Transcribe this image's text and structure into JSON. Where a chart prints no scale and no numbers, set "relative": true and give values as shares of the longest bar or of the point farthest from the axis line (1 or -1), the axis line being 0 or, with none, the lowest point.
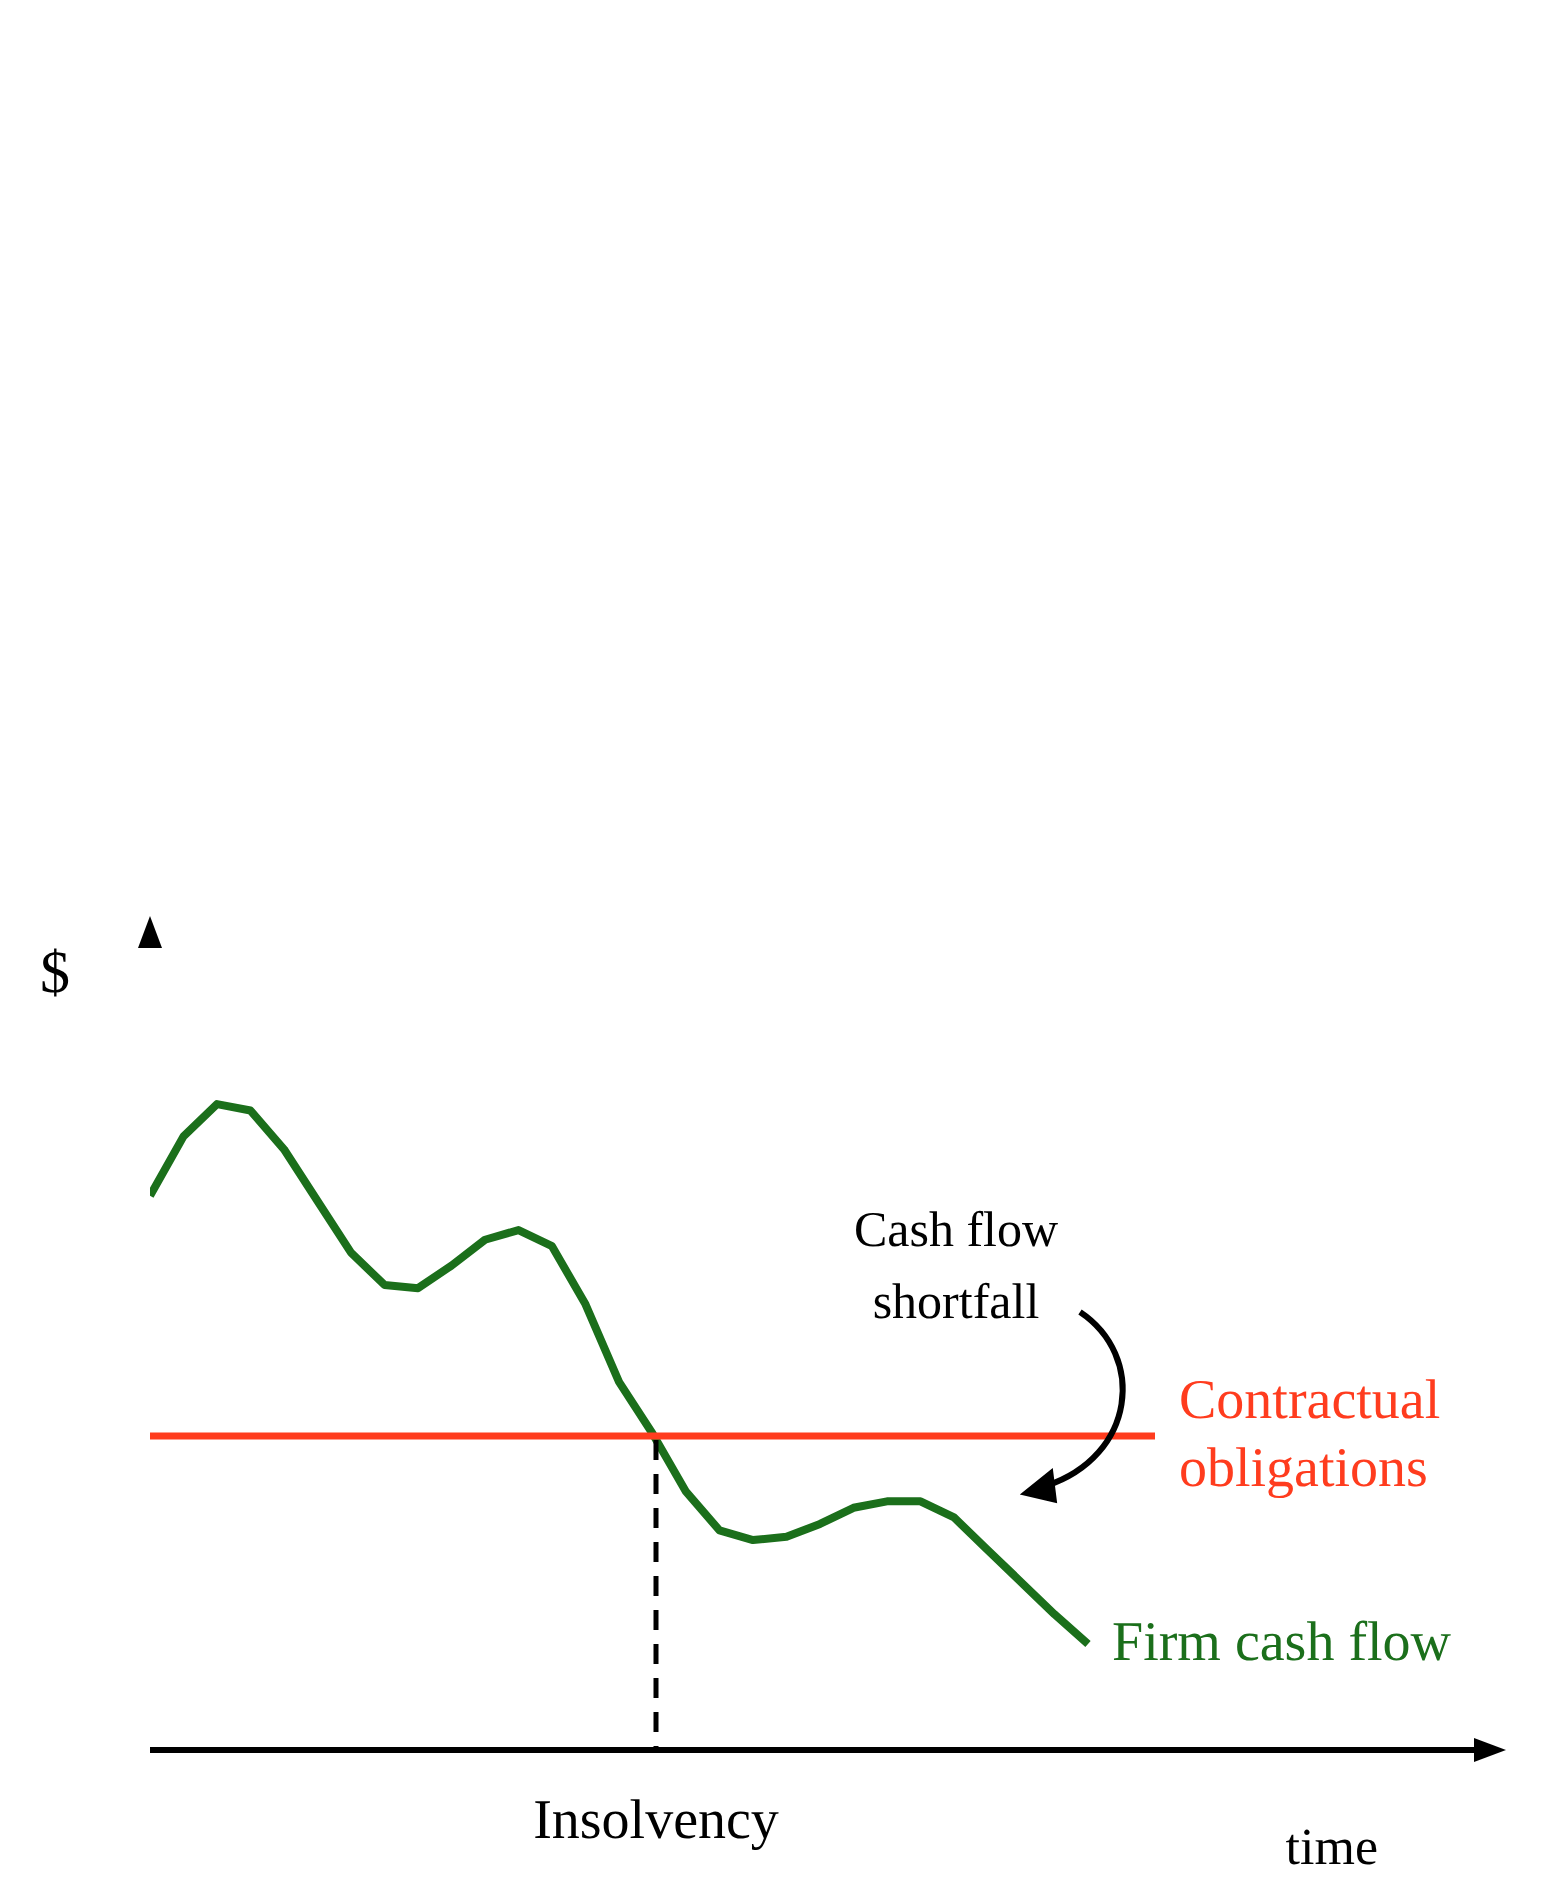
{
  "chart_data": {
    "type": "line",
    "relative": true,
    "xlabel": "time",
    "ylabel": "$",
    "categories": [
      null,
      null,
      null,
      null,
      null,
      null,
      null,
      null,
      null,
      null,
      null,
      null,
      null,
      null,
      null,
      null,
      null,
      null,
      null,
      null,
      null,
      null,
      null,
      null,
      null,
      null,
      null,
      null,
      null,
      null,
      null,
      null,
      null,
      null,
      null,
      null,
      null,
      null,
      null,
      null,
      null
    ],
    "series": [
      {
        "name": "Firm cash flow",
        "color": "#1b6f1b",
        "values": [
          0.858,
          0.95,
          1,
          0.99,
          0.93,
          0.85,
          0.77,
          0.72,
          0.715,
          0.75,
          0.79,
          0.805,
          0.78,
          0.69,
          0.57,
          0.49,
          0.4,
          0.34,
          0.325,
          0.33,
          0.35,
          0.375,
          0.385,
          0.385,
          0.36,
          0.31,
          0.26,
          0.21,
          0.164,
          null,
          null,
          null,
          null,
          null,
          null,
          null,
          null,
          null,
          null,
          null,
          null
        ]
      },
      {
        "name": "Contractual obligations",
        "color": "#ff3c1e",
        "values": [
          0.486,
          0.486,
          0.486,
          0.486,
          0.486,
          0.486,
          0.486,
          0.486,
          0.486,
          0.486,
          0.486,
          0.486,
          0.486,
          0.486,
          0.486,
          0.486,
          0.486,
          0.486,
          0.486,
          0.486,
          0.486,
          0.486,
          0.486,
          0.486,
          0.486,
          0.486,
          0.486,
          0.486,
          0.486,
          0.486,
          0.486,
          null,
          null,
          null,
          null,
          null,
          null,
          null,
          null,
          null,
          null
        ]
      }
    ],
    "annotations": [
      "Cash flow shortfall",
      "Insolvency"
    ],
    "legend": false,
    "grid": false,
    "marker": "none"
  }
}
